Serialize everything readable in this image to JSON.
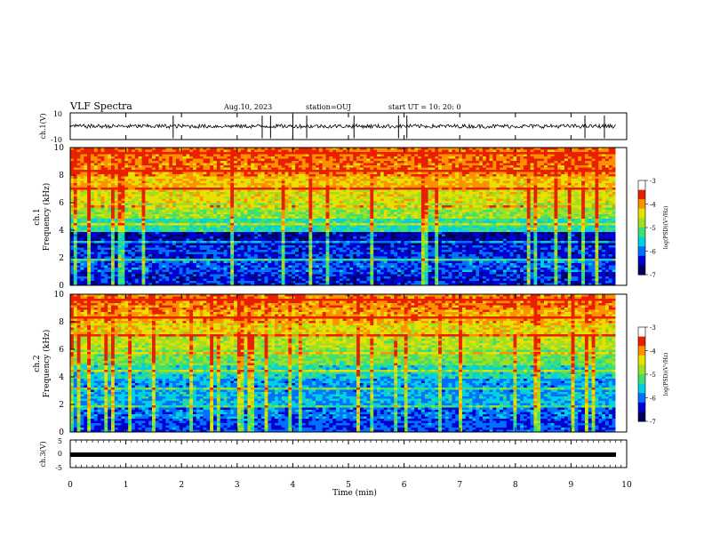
{
  "header": {
    "title": "VLF Spectra",
    "date": "Aug.10, 2023",
    "station": "station=OUJ",
    "start": "start UT =  10: 20: 0"
  },
  "colorbar": {
    "label": "log(PSD)(V²/Hz)",
    "ticks": [
      "-3",
      "-4",
      "-5",
      "-6",
      "-7"
    ],
    "colors": [
      "#00005a",
      "#0000d0",
      "#0070ff",
      "#00d0e0",
      "#40e070",
      "#a0e020",
      "#e8e000",
      "#ff9000",
      "#e82000",
      "#ffffff"
    ]
  },
  "chart_data": [
    {
      "type": "line",
      "name": "ch1-waveform",
      "ylabel": "ch.1(V)",
      "ylim": [
        -10,
        10
      ],
      "yticks": [
        "10",
        "-10"
      ],
      "baseline": 0,
      "spike_minutes": [
        1.85,
        3.45,
        3.6,
        4.0,
        4.25,
        5.1,
        5.9,
        6.05,
        9.25,
        9.6
      ]
    },
    {
      "type": "heatmap",
      "name": "ch1-spectrogram",
      "ylabel": "ch.1 Frequency (kHz)",
      "ylabel_top": "ch.1",
      "ylabel_bottom": "Frequency (kHz)",
      "ylim": [
        0,
        10
      ],
      "yticks": [
        "0",
        "2",
        "4",
        "6",
        "8",
        "10"
      ],
      "zlim": [
        -7,
        -3
      ],
      "columns": [
        -3.7,
        -3.6,
        -3.8,
        -3.5,
        -4.0,
        -3.6,
        -3.7,
        -3.9,
        -3.6,
        -3.5,
        -3.7,
        -4.1,
        -3.6,
        -3.8,
        -3.5,
        -3.7,
        -3.6,
        -3.9,
        -3.6,
        -3.5
      ],
      "rows_khz": [
        1,
        2,
        3,
        4,
        5,
        6,
        7,
        8,
        9,
        10
      ],
      "profile": [
        -6.3,
        -6.0,
        -6.2,
        -6.5,
        -5.2,
        -4.6,
        -4.2,
        -3.9,
        -3.6,
        -3.5
      ]
    },
    {
      "type": "heatmap",
      "name": "ch2-spectrogram",
      "ylabel": "ch.2 Frequency (kHz)",
      "ylabel_top": "ch.2",
      "ylabel_bottom": "Frequency (kHz)",
      "ylim": [
        0,
        10
      ],
      "yticks": [
        "0",
        "2",
        "4",
        "6",
        "8",
        "10"
      ],
      "zlim": [
        -7,
        -3
      ],
      "rows_khz": [
        1,
        2,
        3,
        4,
        5,
        6,
        7,
        8,
        9,
        10
      ],
      "profile": [
        -6.1,
        -5.9,
        -5.6,
        -5.7,
        -5.3,
        -4.8,
        -4.4,
        -4.1,
        -3.8,
        -3.6
      ]
    },
    {
      "type": "line",
      "name": "ch3-waveform",
      "ylabel": "ch.3(V)",
      "ylim": [
        -5,
        5
      ],
      "yticks": [
        "5",
        "0",
        "-5"
      ],
      "baseline": -1
    }
  ],
  "xaxis": {
    "label": "Time (min)",
    "ticks": [
      "0",
      "1",
      "2",
      "3",
      "4",
      "5",
      "6",
      "7",
      "8",
      "9",
      "10"
    ],
    "range": [
      0,
      10
    ],
    "data_end": 9.8
  }
}
